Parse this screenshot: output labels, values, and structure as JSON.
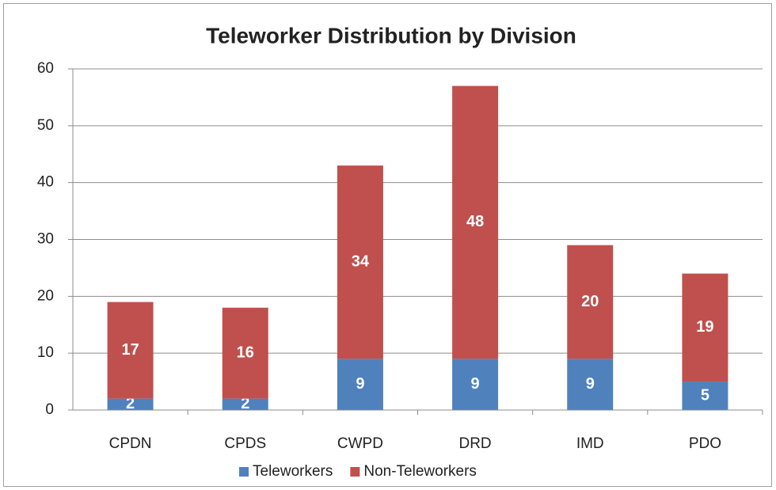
{
  "chart_data": {
    "type": "bar",
    "stacked": true,
    "title": "Teleworker Distribution by Division",
    "categories": [
      "CPDN",
      "CPDS",
      "CWPD",
      "DRD",
      "IMD",
      "PDO"
    ],
    "series": [
      {
        "name": "Teleworkers",
        "color": "#4f81bd",
        "values": [
          2,
          2,
          9,
          9,
          9,
          5
        ]
      },
      {
        "name": "Non-Teleworkers",
        "color": "#c0504d",
        "values": [
          17,
          16,
          34,
          48,
          20,
          19
        ]
      }
    ],
    "ylim": [
      0,
      60
    ],
    "yticks": [
      0,
      10,
      20,
      30,
      40,
      50,
      60
    ],
    "grid": true,
    "legend": "bottom",
    "data_labels": true
  }
}
